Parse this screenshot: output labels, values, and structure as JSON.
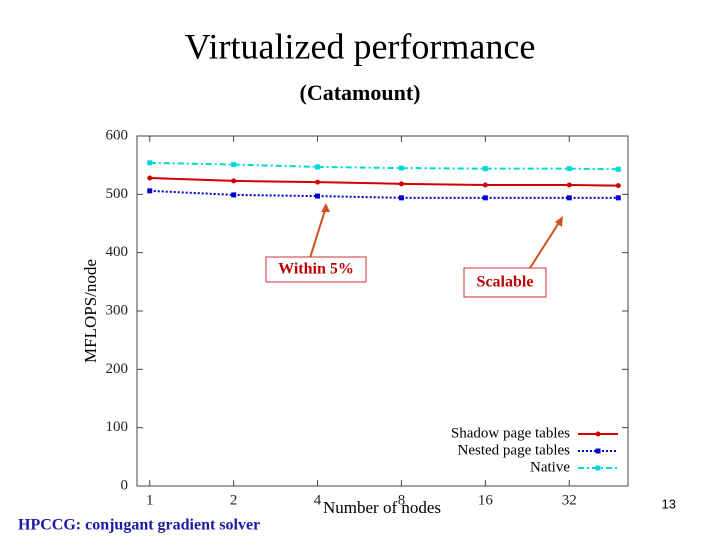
{
  "chart_data": {
    "type": "line",
    "title": "Virtualized performance",
    "subtitle": "(Catamount)",
    "x_label": "Number of nodes",
    "y_label": "MFLOPS/node",
    "x": [
      1,
      2,
      4,
      8,
      16,
      32,
      48
    ],
    "xlim": [
      0.9,
      52
    ],
    "xscale": "log2",
    "xticks": [
      1,
      2,
      4,
      8,
      16,
      32
    ],
    "ylim": [
      0,
      600
    ],
    "yticks": [
      0,
      100,
      200,
      300,
      400,
      500,
      600
    ],
    "legend": "lower right",
    "series": [
      {
        "name": "Shadow page tables",
        "color": "#d40000",
        "dash": "",
        "marker": "circle",
        "values": [
          528,
          523,
          521,
          518,
          516,
          516,
          515
        ]
      },
      {
        "name": "Nested page tables",
        "color": "#0000cc",
        "dash": "2 2",
        "marker": "square",
        "values": [
          506,
          499,
          497,
          494,
          494,
          494,
          494
        ]
      },
      {
        "name": "Native",
        "color": "#00d8d8",
        "dash": "6 3 2 3",
        "marker": "square",
        "values": [
          554,
          551,
          547,
          545,
          544,
          544,
          543
        ]
      }
    ],
    "annotations": [
      "Within 5%",
      "Scalable"
    ],
    "footer": "HPCCG: conjugant gradient solver",
    "page_number": "13"
  }
}
